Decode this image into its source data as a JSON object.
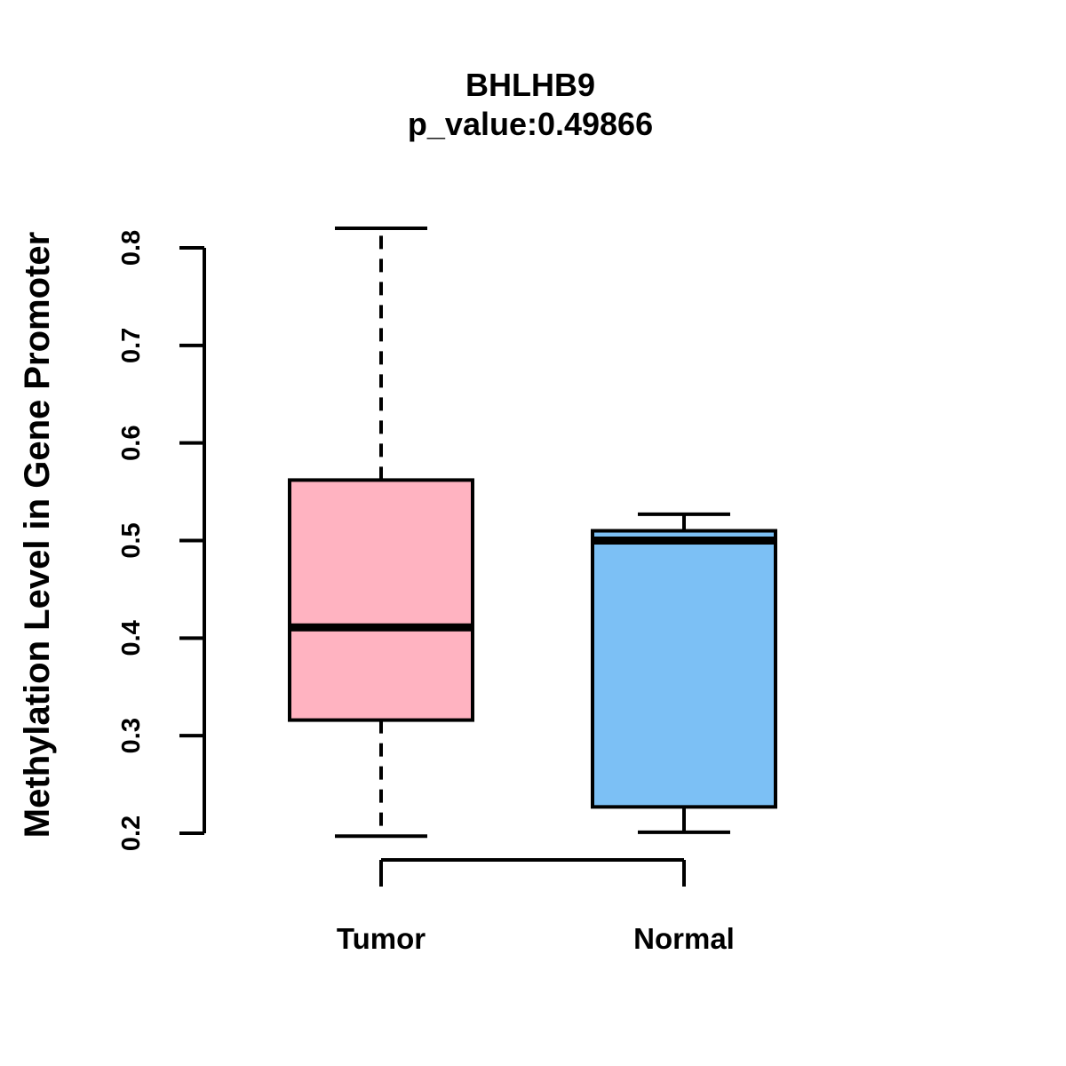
{
  "title": {
    "line1": "BHLHB9",
    "line2": "p_value:0.49866"
  },
  "chart_data": {
    "type": "boxplot",
    "title": "BHLHB9",
    "subtitle": "p_value:0.49866",
    "xlabel": "",
    "ylabel": "Methylation Level in Gene Promoter",
    "ylim": [
      0.2,
      0.82
    ],
    "yticks": [
      "0.2",
      "0.3",
      "0.4",
      "0.5",
      "0.6",
      "0.7",
      "0.8"
    ],
    "ytick_values": [
      0.2,
      0.3,
      0.4,
      0.5,
      0.6,
      0.7,
      0.8
    ],
    "grid": false,
    "legend": null,
    "categories": [
      "Tumor",
      "Normal"
    ],
    "series": [
      {
        "name": "Tumor",
        "min": 0.197,
        "q1": 0.316,
        "median": 0.411,
        "q3": 0.562,
        "max": 0.82,
        "color": "#FFB3C1",
        "whisker_dashed": true
      },
      {
        "name": "Normal",
        "min": 0.201,
        "q1": 0.227,
        "median": 0.5,
        "q3": 0.51,
        "max": 0.527,
        "color": "#7CC0F5",
        "whisker_dashed": false
      }
    ],
    "axis_color": "#000000",
    "text_color": "#000000"
  }
}
